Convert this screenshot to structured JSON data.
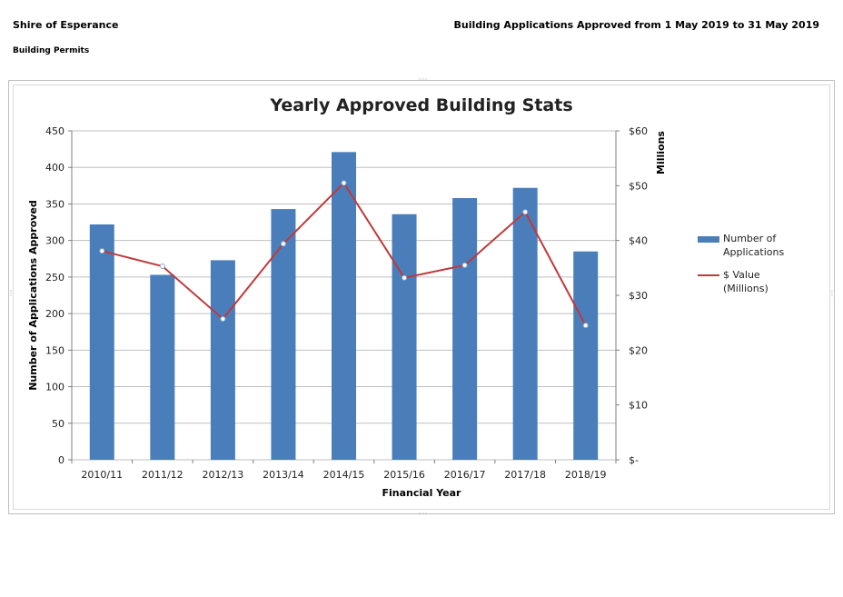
{
  "header": {
    "organization": "Shire of Esperance",
    "section": "Building Permits",
    "report_title": "Building Applications Approved from 1 May 2019 to 31 May 2019"
  },
  "colors": {
    "bar": "#4a7ebb",
    "line": "#c0393b",
    "grid": "#bfbfbf"
  },
  "chart_data": {
    "type": "bar+line",
    "title": "Yearly Approved Building Stats",
    "xlabel": "Financial Year",
    "ylabel": "Number of Applications Approved",
    "y2label": "Millions",
    "categories": [
      "2010/11",
      "2011/12",
      "2012/13",
      "2013/14",
      "2014/15",
      "2015/16",
      "2016/17",
      "2017/18",
      "2018/19"
    ],
    "series": [
      {
        "name": "Number of Applications",
        "type": "bar",
        "axis": "left",
        "values": [
          322,
          253,
          273,
          343,
          421,
          336,
          358,
          372,
          285
        ]
      },
      {
        "name": "$ Value (Millions)",
        "type": "line",
        "axis": "right",
        "values": [
          38.1,
          35.3,
          25.7,
          39.4,
          50.5,
          33.2,
          35.5,
          45.2,
          24.5
        ]
      }
    ],
    "ylim": [
      0,
      450
    ],
    "yticks": [
      0,
      50,
      100,
      150,
      200,
      250,
      300,
      350,
      400,
      450
    ],
    "y2lim": [
      0,
      60
    ],
    "y2ticks": [
      0,
      10,
      20,
      30,
      40,
      50,
      60
    ],
    "y2tick_labels": [
      "$-",
      "$10",
      "$20",
      "$30",
      "$40",
      "$50",
      "$60"
    ],
    "legend": [
      "Number of Applications",
      "$ Value (Millions)"
    ],
    "legend_position": "right",
    "grid": true
  }
}
